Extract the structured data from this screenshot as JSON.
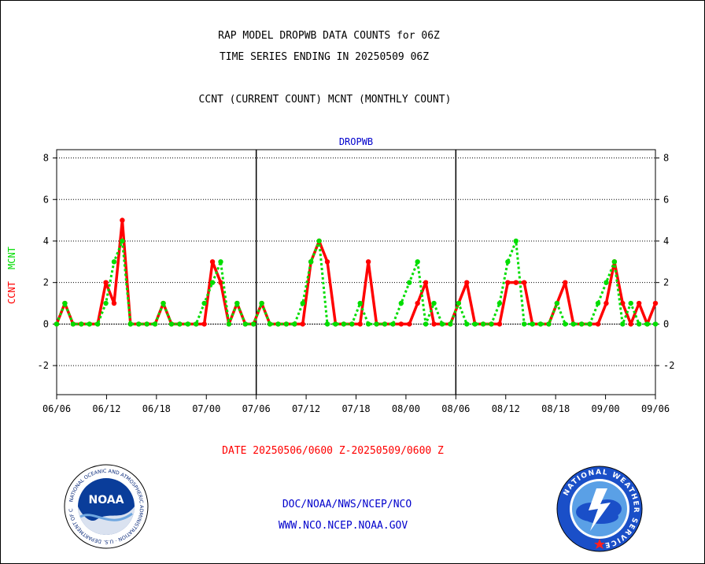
{
  "header": {
    "title_line1": "RAP MODEL DROPWB DATA COUNTS for 06Z",
    "title_line2": "TIME SERIES ENDING IN 20250509 06Z",
    "title_line3": "CCNT (CURRENT COUNT) MCNT (MONTHLY COUNT)"
  },
  "footer": {
    "date_range": "DATE 20250506/0600 Z-20250509/0600 Z",
    "agency": "DOC/NOAA/NWS/NCEP/NCO",
    "url": "WWW.NCO.NCEP.NOAA.GOV"
  },
  "logos": {
    "noaa_text": "NOAA",
    "noaa_ring": "NATIONAL OCEANIC AND ATMOSPHERIC ADMINISTRATION · U.S. DEPARTMENT OF COMMERCE",
    "nws_ring": "NATIONAL WEATHER SERVICE"
  },
  "colors": {
    "ccnt": "#ff0000",
    "mcnt": "#00dd00",
    "label_blue": "#0000cc",
    "date_red": "#ff0000"
  },
  "chart_data": {
    "type": "line",
    "title": "DROPWB",
    "ylabel_series1": "CCNT",
    "ylabel_series2": "MCNT",
    "ylim": [
      -3.4,
      8.4
    ],
    "yticks": [
      -2,
      0,
      2,
      4,
      6,
      8
    ],
    "grid": true,
    "panels": 3,
    "x_tick_labels": [
      "06/06",
      "06/12",
      "06/18",
      "07/00",
      "07/06",
      "07/12",
      "07/18",
      "08/00",
      "08/06",
      "08/12",
      "08/18",
      "09/00",
      "09/06"
    ],
    "series": [
      {
        "name": "CCNT",
        "color": "#ff0000",
        "values": [
          0,
          1,
          0,
          0,
          0,
          0,
          2,
          1,
          5,
          0,
          0,
          0,
          0,
          1,
          0,
          0,
          0,
          0,
          0,
          3,
          2,
          0,
          1,
          0,
          0,
          1,
          0,
          0,
          0,
          0,
          0,
          3,
          4,
          3,
          0,
          0,
          0,
          0,
          3,
          0,
          0,
          0,
          0,
          0,
          1,
          2,
          0,
          0,
          0,
          1,
          2,
          0,
          0,
          0,
          0,
          2,
          2,
          2,
          0,
          0,
          0,
          1,
          2,
          0,
          0,
          0,
          0,
          1,
          3,
          1,
          0,
          1,
          0,
          1
        ]
      },
      {
        "name": "MCNT",
        "color": "#00dd00",
        "values": [
          0,
          1,
          0,
          0,
          0,
          0,
          1,
          3,
          4,
          0,
          0,
          0,
          0,
          1,
          0,
          0,
          0,
          0,
          1,
          2,
          3,
          0,
          1,
          0,
          0,
          1,
          0,
          0,
          0,
          0,
          1,
          3,
          4,
          0,
          0,
          0,
          0,
          1,
          0,
          0,
          0,
          0,
          1,
          2,
          3,
          0,
          1,
          0,
          0,
          1,
          0,
          0,
          0,
          0,
          1,
          3,
          4,
          0,
          0,
          0,
          0,
          1,
          0,
          0,
          0,
          0,
          1,
          2,
          3,
          0,
          1,
          0,
          0,
          0
        ]
      }
    ]
  }
}
